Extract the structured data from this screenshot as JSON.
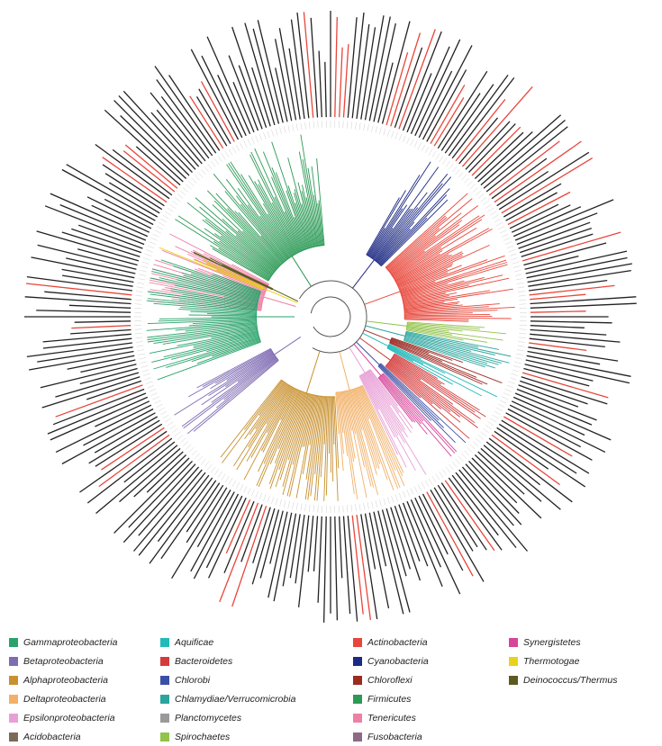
{
  "legend": {
    "columns": [
      [
        {
          "label": "Gammaproteobacteria",
          "color": "#2aa36b"
        },
        {
          "label": "Betaproteobacteria",
          "color": "#7f6bb3"
        },
        {
          "label": "Alphaproteobacteria",
          "color": "#c8902e"
        },
        {
          "label": "Deltaproteobacteria",
          "color": "#f2b168"
        },
        {
          "label": "Epsilonproteobacteria",
          "color": "#e89fd6"
        },
        {
          "label": "Acidobacteria",
          "color": "#7a6a58"
        }
      ],
      [
        {
          "label": "Aquificae",
          "color": "#22b9b9"
        },
        {
          "label": "Bacteroidetes",
          "color": "#d43b3b"
        },
        {
          "label": "Chlorobi",
          "color": "#3a4fa6"
        },
        {
          "label": "Chlamydiae/Verrucomicrobia",
          "color": "#2aa59e"
        },
        {
          "label": "Planctomycetes",
          "color": "#9a9a9a"
        },
        {
          "label": "Spirochaetes",
          "color": "#92c34a"
        }
      ],
      [
        {
          "label": "Actinobacteria",
          "color": "#e8463a"
        },
        {
          "label": "Cyanobacteria",
          "color": "#1d2a83"
        },
        {
          "label": "Chloroflexi",
          "color": "#9c2b22"
        },
        {
          "label": "Firmicutes",
          "color": "#2c9a56"
        },
        {
          "label": "Tenericutes",
          "color": "#f07fa6"
        },
        {
          "label": "Fusobacteria",
          "color": "#8e6a87"
        }
      ],
      [
        {
          "label": "Synergistetes",
          "color": "#d8449a"
        },
        {
          "label": "Thermotogae",
          "color": "#e8d21c"
        },
        {
          "label": "Deinococcus/Thermus",
          "color": "#5c5a1e"
        }
      ]
    ]
  },
  "tree": {
    "leaf_label_color": "#222222",
    "highlight_label_color": "#e8463a",
    "branch_color": "#555555",
    "clades": [
      {
        "group": "Firmicutes",
        "start": -150,
        "end": -95
      },
      {
        "group": "Tenericutes",
        "start": -175,
        "end": -152
      },
      {
        "group": "Cyanobacteria",
        "start": -60,
        "end": -45
      },
      {
        "group": "Actinobacteria",
        "start": -42,
        "end": 2
      },
      {
        "group": "Spirochaetes",
        "start": 4,
        "end": 10
      },
      {
        "group": "Chlamydiae/Verrucomicrobia",
        "start": 11,
        "end": 18
      },
      {
        "group": "Chloroflexi",
        "start": 19,
        "end": 24
      },
      {
        "group": "Aquificae",
        "start": 25,
        "end": 29
      },
      {
        "group": "Bacteroidetes",
        "start": 30,
        "end": 42
      },
      {
        "group": "Chlorobi",
        "start": 43,
        "end": 46
      },
      {
        "group": "Synergistetes",
        "start": 47,
        "end": 52
      },
      {
        "group": "Epsilonproteobacteria",
        "start": 53,
        "end": 64
      },
      {
        "group": "Deltaproteobacteria",
        "start": 65,
        "end": 86
      },
      {
        "group": "Alphaproteobacteria",
        "start": 87,
        "end": 128
      },
      {
        "group": "Betaproteobacteria",
        "start": 140,
        "end": 152
      },
      {
        "group": "Gammaproteobacteria",
        "start": 160,
        "end": 200
      },
      {
        "group": "Thermotogae",
        "start": 202,
        "end": 204
      },
      {
        "group": "Deinococcus/Thermus",
        "start": 205,
        "end": 206
      }
    ]
  }
}
